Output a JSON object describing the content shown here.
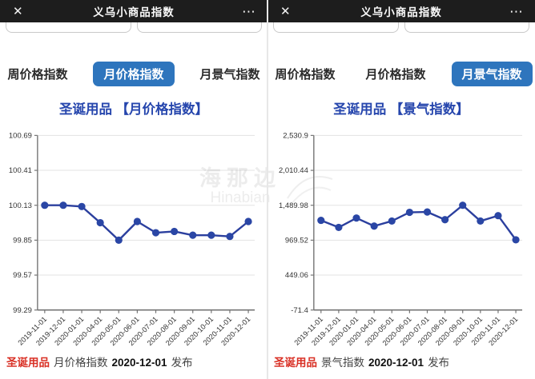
{
  "header": {
    "title": "义乌小商品指数",
    "close": "✕",
    "more": "⋯"
  },
  "panels": [
    {
      "tabs": [
        {
          "label": "周价格指数",
          "active": false
        },
        {
          "label": "月价格指数",
          "active": true
        },
        {
          "label": "月景气指数",
          "active": false
        }
      ],
      "chart_title": "圣诞用品 【月价格指数】",
      "caption": {
        "product": "圣诞用品",
        "index": "月价格指数",
        "date": "2020-12-01",
        "action": "发布"
      }
    },
    {
      "tabs": [
        {
          "label": "周价格指数",
          "active": false
        },
        {
          "label": "月价格指数",
          "active": false
        },
        {
          "label": "月景气指数",
          "active": true
        }
      ],
      "chart_title": "圣诞用品 【景气指数】",
      "caption": {
        "product": "圣诞用品",
        "index": "景气指数",
        "date": "2020-12-01",
        "action": "发布"
      }
    }
  ],
  "watermark": {
    "cn": "海那边",
    "en": "Hinabian"
  },
  "colors": {
    "appbar_bg": "#1d1d1d",
    "active_tab_bg": "#2e75bd",
    "title_blue": "#2646ad",
    "line_blue": "#2b3f9e",
    "caption_red": "#d93025",
    "grid": "#e3e3e3",
    "axis": "#757575"
  },
  "chart_data": [
    {
      "type": "line",
      "title": "圣诞用品 【月价格指数】",
      "x": [
        "2019-11-01",
        "2019-12-01",
        "2020-01-01",
        "2020-04-01",
        "2020-05-01",
        "2020-06-01",
        "2020-07-01",
        "2020-08-01",
        "2020-09-01",
        "2020-10-01",
        "2020-11-01",
        "2020-12-01"
      ],
      "values": [
        100.13,
        100.13,
        100.12,
        99.99,
        99.85,
        100.0,
        99.91,
        99.92,
        99.89,
        99.89,
        99.88,
        100.0
      ],
      "y_tick_labels": [
        "100.69",
        "100.41",
        "100.13",
        "99.85",
        "99.57",
        "99.29"
      ],
      "ylim": [
        99.29,
        100.69
      ],
      "xlabel": "",
      "ylabel": "",
      "grid": true,
      "legend": "none",
      "line_color": "#2b3f9e",
      "marker_color": "#2a46a5"
    },
    {
      "type": "line",
      "title": "圣诞用品 【景气指数】",
      "x": [
        "2019-11-01",
        "2019-12-01",
        "2020-01-01",
        "2020-04-01",
        "2020-05-01",
        "2020-06-01",
        "2020-07-01",
        "2020-08-01",
        "2020-09-01",
        "2020-10-01",
        "2020-11-01",
        "2020-12-01"
      ],
      "values": [
        1265,
        1160,
        1300,
        1180,
        1255,
        1385,
        1390,
        1275,
        1490,
        1255,
        1335,
        975
      ],
      "y_tick_labels": [
        "2,530.9",
        "2,010.44",
        "1,489.98",
        "969.52",
        "449.06",
        "-71.4"
      ],
      "ylim": [
        -71.4,
        2530.9
      ],
      "xlabel": "",
      "ylabel": "",
      "grid": true,
      "legend": "none",
      "line_color": "#2b3f9e",
      "marker_color": "#2a46a5"
    }
  ]
}
